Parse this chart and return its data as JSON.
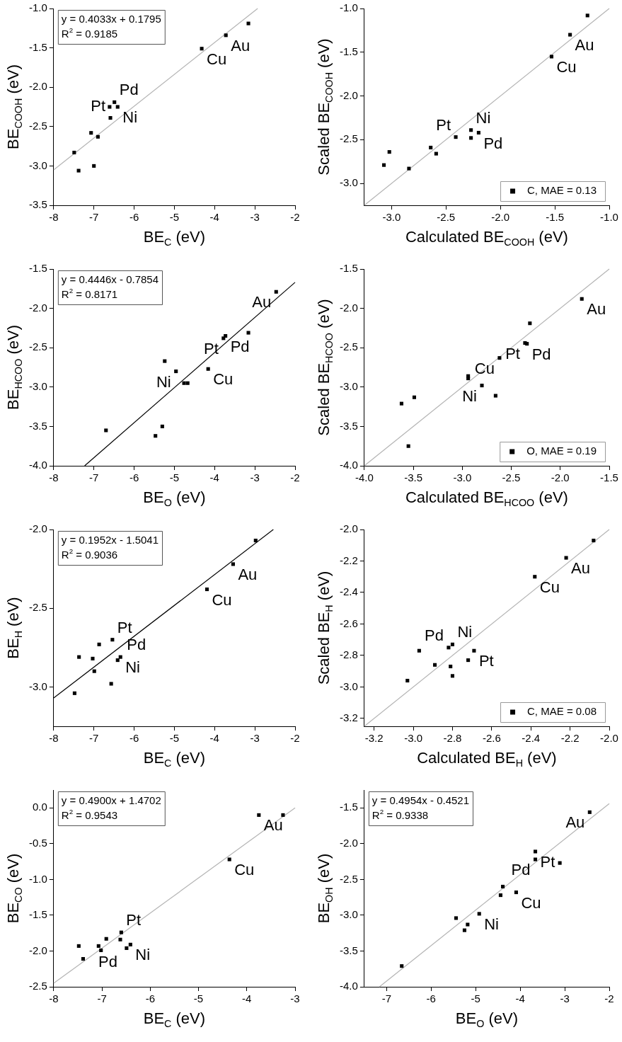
{
  "chart_data": [
    {
      "type": "scatter",
      "xlabel": "BE$_{C}$ (eV)",
      "ylabel": "BE$_{COOH}$ (eV)",
      "marker": "square",
      "xlim": [
        -8,
        -2
      ],
      "xticks": [
        -8,
        -7,
        -6,
        -5,
        -4,
        -3,
        -2
      ],
      "ylim": [
        -3.5,
        -1.0
      ],
      "yticks": [
        -3.5,
        {
          "value": -3,
          "label": "-3.0"
        },
        -2.5,
        {
          "value": -2,
          "label": "-2.0"
        },
        -1.5,
        {
          "value": -1,
          "label": "-1.0"
        }
      ],
      "series": [
        {
          "color": "#000000",
          "x": [
            -3.16,
            -3.72,
            -4.32,
            -6.49,
            -6.61,
            -6.41,
            -6.59,
            -7.07,
            -6.9,
            -7.49,
            -7.0,
            -7.38
          ],
          "values": [
            -1.19,
            -1.34,
            -1.51,
            -2.19,
            -2.25,
            -2.25,
            -2.39,
            -2.58,
            -2.63,
            -2.83,
            -3.0,
            -3.06
          ]
        },
        {
          "type": "line",
          "marker": "none",
          "color": "#b4b4b4",
          "x": [
            -8,
            -2.93
          ],
          "values": [
            -3.05,
            -1.0
          ]
        }
      ],
      "annotations": [
        "y = 0.4033x + 0.1795",
        "R$^{2}$ = 0.9185",
        {
          "text": "Au",
          "x": -3.72,
          "y": -1.34
        },
        {
          "text": "Cu",
          "x": -4.32,
          "y": -1.51
        },
        {
          "text": "Pd",
          "x": -6.49,
          "y": -2.19
        },
        {
          "text": "Ni",
          "x": -6.41,
          "y": -2.25
        },
        {
          "text": "Pt",
          "x": -6.59,
          "y": -2.39
        }
      ]
    },
    {
      "type": "scatter",
      "xlabel": "Calculated BE$_{COOH}$ (eV)",
      "ylabel": "Scaled BE$_{COOH}$ (eV)",
      "marker": "square",
      "legend": "bottom right",
      "xlim": [
        -3.25,
        -1.0
      ],
      "xticks": [
        {
          "value": -3,
          "label": "-3.0"
        },
        -2.5,
        {
          "value": -2,
          "label": "-2.0"
        },
        -1.5,
        {
          "value": -1,
          "label": "-1.0"
        }
      ],
      "ylim": [
        -3.25,
        -1.0
      ],
      "yticks": [
        {
          "value": -3,
          "label": "-3.0"
        },
        -2.5,
        {
          "value": -2,
          "label": "-2.0"
        },
        -1.5,
        {
          "value": -1,
          "label": "-1.0"
        }
      ],
      "series": [
        {
          "name": "C, MAE = 0.13",
          "color": "#000000",
          "x": [
            -1.2,
            -1.36,
            -1.53,
            -2.27,
            -2.2,
            -2.27,
            -2.41,
            -2.64,
            -2.59,
            -3.02,
            -3.07,
            -2.84
          ],
          "values": [
            -1.08,
            -1.3,
            -1.55,
            -2.39,
            -2.42,
            -2.48,
            -2.47,
            -2.59,
            -2.66,
            -2.64,
            -2.79,
            -2.83
          ]
        },
        {
          "type": "line",
          "marker": "none",
          "color": "#b4b4b4",
          "x": [
            -3.25,
            -1.0
          ],
          "values": [
            -3.25,
            -1.0
          ]
        }
      ],
      "annotations": [
        {
          "text": "Au",
          "x": -1.36,
          "y": -1.3
        },
        {
          "text": "Cu",
          "x": -1.53,
          "y": -1.55
        },
        {
          "text": "Ni",
          "x": -2.27,
          "y": -2.39
        },
        {
          "text": "Pd",
          "x": -2.2,
          "y": -2.42
        },
        {
          "text": "Pt",
          "x": -2.41,
          "y": -2.47
        }
      ]
    },
    {
      "type": "scatter",
      "xlabel": "BE$_{O}$ (eV)",
      "ylabel": "BE$_{HCOO}$ (eV)",
      "marker": "square",
      "xlim": [
        -8,
        -2
      ],
      "xticks": [
        -8,
        -7,
        -6,
        -5,
        -4,
        -3,
        -2
      ],
      "ylim": [
        -4.0,
        -1.5
      ],
      "yticks": [
        {
          "value": -4,
          "label": "-4.0"
        },
        -3.5,
        {
          "value": -3,
          "label": "-3.0"
        },
        -2.5,
        {
          "value": -2,
          "label": "-2.0"
        },
        -1.5
      ],
      "series": [
        {
          "color": "#000000",
          "x": [
            -2.47,
            -3.16,
            -3.73,
            -3.78,
            -5.24,
            -4.96,
            -4.16,
            -4.76,
            -4.67,
            -6.7,
            -5.3,
            -5.47
          ],
          "values": [
            -1.79,
            -2.31,
            -2.35,
            -2.38,
            -2.67,
            -2.8,
            -2.77,
            -2.95,
            -2.95,
            -3.55,
            -3.5,
            -3.62
          ]
        },
        {
          "type": "line",
          "marker": "none",
          "color": "#000000",
          "x": [
            -7.23,
            -2
          ],
          "values": [
            -4.0,
            -1.67
          ]
        }
      ],
      "annotations": [
        "y = 0.4446x - 0.7854",
        "R$^{2}$ = 0.8171",
        {
          "text": "Au",
          "x": -2.47,
          "y": -1.79
        },
        {
          "text": "Pd",
          "x": -3.73,
          "y": -2.35
        },
        {
          "text": "Pt",
          "x": -3.78,
          "y": -2.38
        },
        {
          "text": "Cu",
          "x": -4.16,
          "y": -2.77
        },
        {
          "text": "Ni",
          "x": -4.96,
          "y": -2.8
        }
      ]
    },
    {
      "type": "scatter",
      "xlabel": "Calculated BE$_{HCOO}$ (eV)",
      "ylabel": "Scaled BE$_{HCOO}$ (eV)",
      "marker": "square",
      "legend": "bottom right",
      "xlim": [
        -4.0,
        -1.5
      ],
      "xticks": [
        {
          "value": -4,
          "label": "-4.0"
        },
        -3.5,
        {
          "value": -3,
          "label": "-3.0"
        },
        -2.5,
        {
          "value": -2,
          "label": "-2.0"
        },
        -1.5
      ],
      "ylim": [
        -4.0,
        -1.5
      ],
      "yticks": [
        {
          "value": -4,
          "label": "-4.0"
        },
        -3.5,
        {
          "value": -3,
          "label": "-3.0"
        },
        -2.5,
        {
          "value": -2,
          "label": "-2.0"
        },
        -1.5
      ],
      "series": [
        {
          "name": "O, MAE = 0.19",
          "color": "#000000",
          "x": [
            -1.78,
            -2.31,
            -2.36,
            -2.34,
            -2.62,
            -2.94,
            -2.94,
            -2.8,
            -2.66,
            -3.49,
            -3.62,
            -3.55
          ],
          "values": [
            -1.88,
            -2.19,
            -2.44,
            -2.45,
            -2.63,
            -2.86,
            -2.89,
            -2.98,
            -3.11,
            -3.13,
            -3.21,
            -3.75
          ]
        },
        {
          "type": "line",
          "marker": "none",
          "color": "#b4b4b4",
          "x": [
            -4.0,
            -1.5
          ],
          "values": [
            -4.0,
            -1.5
          ]
        }
      ],
      "annotations": [
        {
          "text": "Au",
          "x": -1.78,
          "y": -1.88
        },
        {
          "text": "Pt",
          "x": -2.36,
          "y": -2.44
        },
        {
          "text": "Pd",
          "x": -2.34,
          "y": -2.45
        },
        {
          "text": "Cu",
          "x": -2.62,
          "y": -2.63
        },
        {
          "text": "Ni",
          "x": -2.8,
          "y": -2.98
        }
      ]
    },
    {
      "type": "scatter",
      "xlabel": "BE$_{C}$ (eV)",
      "ylabel": "BE$_{H}$ (eV)",
      "marker": "square",
      "xlim": [
        -8,
        -2
      ],
      "xticks": [
        -8,
        -7,
        -6,
        -5,
        -4,
        -3,
        -2
      ],
      "ylim": [
        -3.25,
        -2.0
      ],
      "yticks": [
        {
          "value": -3,
          "label": "-3.0"
        },
        -2.5,
        {
          "value": -2,
          "label": "-2.0"
        }
      ],
      "series": [
        {
          "color": "#000000",
          "x": [
            -2.98,
            -3.54,
            -4.19,
            -6.54,
            -6.87,
            -7.37,
            -7.03,
            -6.34,
            -6.41,
            -6.99,
            -6.57,
            -7.48
          ],
          "values": [
            -2.07,
            -2.22,
            -2.38,
            -2.7,
            -2.73,
            -2.81,
            -2.82,
            -2.81,
            -2.83,
            -2.9,
            -2.98,
            -3.04
          ]
        },
        {
          "type": "line",
          "marker": "none",
          "color": "#000000",
          "x": [
            -8,
            -2.54
          ],
          "values": [
            -3.07,
            -2.0
          ]
        }
      ],
      "annotations": [
        "y = 0.1952x - 1.5041",
        "R$^{2}$ = 0.9036",
        {
          "text": "Au",
          "x": -3.54,
          "y": -2.22
        },
        {
          "text": "Cu",
          "x": -4.19,
          "y": -2.38
        },
        {
          "text": "Pt",
          "x": -6.54,
          "y": -2.7
        },
        {
          "text": "Ni",
          "x": -6.34,
          "y": -2.81
        },
        {
          "text": "Pd",
          "x": -6.41,
          "y": -2.83
        }
      ]
    },
    {
      "type": "scatter",
      "xlabel": "Calculated BE$_{H}$ (eV)",
      "ylabel": "Scaled BE$_{H}$ (eV)",
      "marker": "square",
      "legend": "bottom right",
      "xlim": [
        -3.25,
        -2.0
      ],
      "xticks": [
        -3.2,
        {
          "value": -3,
          "label": "-3.0"
        },
        -2.8,
        -2.6,
        -2.4,
        -2.2,
        {
          "value": -2,
          "label": "-2.0"
        }
      ],
      "ylim": [
        -3.25,
        -2.0
      ],
      "yticks": [
        -3.2,
        {
          "value": -3,
          "label": "-3.0"
        },
        -2.8,
        -2.6,
        -2.4,
        -2.2,
        {
          "value": -2,
          "label": "-2.0"
        }
      ],
      "series": [
        {
          "name": "C, MAE = 0.08",
          "color": "#000000",
          "x": [
            -2.08,
            -2.22,
            -2.38,
            -2.8,
            -2.82,
            -2.97,
            -2.69,
            -2.72,
            -2.81,
            -2.89,
            -2.8,
            -3.03
          ],
          "values": [
            -2.07,
            -2.18,
            -2.3,
            -2.73,
            -2.75,
            -2.77,
            -2.77,
            -2.83,
            -2.87,
            -2.86,
            -2.93,
            -2.96
          ]
        },
        {
          "type": "line",
          "marker": "none",
          "color": "#b4b4b4",
          "x": [
            -3.25,
            -2.0
          ],
          "values": [
            -3.25,
            -2.0
          ]
        }
      ],
      "annotations": [
        {
          "text": "Au",
          "x": -2.22,
          "y": -2.18
        },
        {
          "text": "Cu",
          "x": -2.38,
          "y": -2.3
        },
        {
          "text": "Ni",
          "x": -2.8,
          "y": -2.73
        },
        {
          "text": "Pd",
          "x": -2.82,
          "y": -2.75
        },
        {
          "text": "Pt",
          "x": -2.69,
          "y": -2.77
        }
      ]
    },
    {
      "type": "scatter",
      "xlabel": "BE$_{C}$ (eV)",
      "ylabel": "BE$_{CO}$ (eV)",
      "marker": "square",
      "xlim": [
        -8,
        -3
      ],
      "xticks": [
        -8,
        -7,
        -6,
        -5,
        -4,
        -3
      ],
      "ylim": [
        -2.5,
        0.25
      ],
      "yticks": [
        -2.5,
        {
          "value": -2,
          "label": "-2.0"
        },
        -1.5,
        {
          "value": -1,
          "label": "-1.0"
        },
        -0.5,
        {
          "value": 0,
          "label": "0.0"
        }
      ],
      "series": [
        {
          "color": "#000000",
          "x": [
            -3.25,
            -3.75,
            -4.36,
            -6.6,
            -6.62,
            -6.41,
            -6.49,
            -6.91,
            -7.07,
            -7.02,
            -7.48,
            -7.39
          ],
          "values": [
            -0.1,
            -0.1,
            -0.72,
            -1.74,
            -1.84,
            -1.91,
            -1.96,
            -1.83,
            -1.93,
            -1.99,
            -1.93,
            -2.11
          ]
        },
        {
          "type": "line",
          "marker": "none",
          "color": "#b4b4b4",
          "x": [
            -8,
            -3
          ],
          "values": [
            -2.45,
            0.0
          ]
        }
      ],
      "annotations": [
        "y = 0.4900x + 1.4702",
        "R$^{2}$ = 0.9543",
        {
          "text": "Au",
          "x": -3.75,
          "y": -0.1
        },
        {
          "text": "Cu",
          "x": -4.36,
          "y": -0.72
        },
        {
          "text": "Pt",
          "x": -6.6,
          "y": -1.74
        },
        {
          "text": "Ni",
          "x": -6.41,
          "y": -1.91
        },
        {
          "text": "Pd",
          "x": -6.49,
          "y": -1.96
        }
      ]
    },
    {
      "type": "scatter",
      "xlabel": "BE$_{O}$ (eV)",
      "ylabel": "BE$_{OH}$ (eV)",
      "marker": "square",
      "xlim": [
        -7.5,
        -2
      ],
      "xticks": [
        -7,
        -6,
        -5,
        -4,
        -3,
        -2
      ],
      "ylim": [
        -4.0,
        -1.25
      ],
      "yticks": [
        {
          "value": -4,
          "label": "-4.0"
        },
        -3.5,
        {
          "value": -3,
          "label": "-3.0"
        },
        -2.5,
        {
          "value": -2,
          "label": "-2.0"
        },
        -1.5
      ],
      "series": [
        {
          "color": "#000000",
          "x": [
            -2.44,
            -3.66,
            -3.66,
            -3.11,
            -4.39,
            -4.44,
            -4.09,
            -4.92,
            -5.44,
            -5.18,
            -5.25,
            -6.66
          ],
          "values": [
            -1.56,
            -2.11,
            -2.22,
            -2.27,
            -2.6,
            -2.72,
            -2.68,
            -2.98,
            -3.04,
            -3.13,
            -3.21,
            -3.71
          ]
        },
        {
          "type": "line",
          "marker": "none",
          "color": "#b4b4b4",
          "x": [
            -7.16,
            -2
          ],
          "values": [
            -4.0,
            -1.44
          ]
        }
      ],
      "annotations": [
        "y = 0.4954x - 0.4521",
        "R$^{2}$ = 0.9338",
        {
          "text": "Au",
          "x": -2.44,
          "y": -1.56
        },
        {
          "text": "Pt",
          "x": -3.66,
          "y": -2.11
        },
        {
          "text": "Pd",
          "x": -3.66,
          "y": -2.22
        },
        {
          "text": "Cu",
          "x": -4.09,
          "y": -2.68
        },
        {
          "text": "Ni",
          "x": -4.92,
          "y": -2.98
        }
      ]
    }
  ]
}
